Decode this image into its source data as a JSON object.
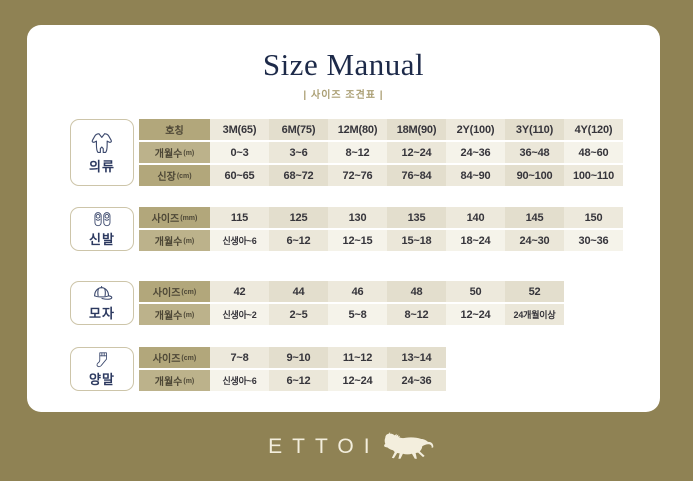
{
  "header": {
    "title": "Size Manual",
    "subtitle": "| 사이즈 조견표 |"
  },
  "sections": [
    {
      "id": "clothing",
      "label": "의류",
      "icon": "onesie-icon",
      "rows": [
        {
          "header": "호칭",
          "unit": "",
          "values": [
            "3M(65)",
            "6M(75)",
            "12M(80)",
            "18M(90)",
            "2Y(100)",
            "3Y(110)",
            "4Y(120)"
          ]
        },
        {
          "header": "개월수",
          "unit": "(m)",
          "values": [
            "0~3",
            "3~6",
            "8~12",
            "12~24",
            "24~36",
            "36~48",
            "48~60"
          ]
        },
        {
          "header": "신장",
          "unit": "(cm)",
          "values": [
            "60~65",
            "68~72",
            "72~76",
            "76~84",
            "84~90",
            "90~100",
            "100~110"
          ]
        }
      ]
    },
    {
      "id": "shoes",
      "label": "신발",
      "icon": "shoes-icon",
      "rows": [
        {
          "header": "사이즈",
          "unit": "(mm)",
          "values": [
            "115",
            "125",
            "130",
            "135",
            "140",
            "145",
            "150"
          ]
        },
        {
          "header": "개월수",
          "unit": "(m)",
          "values": [
            "신생아~6",
            "6~12",
            "12~15",
            "15~18",
            "18~24",
            "24~30",
            "30~36"
          ]
        }
      ]
    },
    {
      "id": "hats",
      "label": "모자",
      "icon": "cap-icon",
      "rows": [
        {
          "header": "사이즈",
          "unit": "(cm)",
          "values": [
            "42",
            "44",
            "46",
            "48",
            "50",
            "52"
          ]
        },
        {
          "header": "개월수",
          "unit": "(m)",
          "values": [
            "신생아~2",
            "2~5",
            "5~8",
            "8~12",
            "12~24",
            "24개월이상"
          ]
        }
      ]
    },
    {
      "id": "socks",
      "label": "양말",
      "icon": "sock-icon",
      "rows": [
        {
          "header": "사이즈",
          "unit": "(cm)",
          "values": [
            "7~8",
            "9~10",
            "11~12",
            "13~14"
          ]
        },
        {
          "header": "개월수",
          "unit": "(m)",
          "values": [
            "신생아~6",
            "6~12",
            "12~24",
            "24~36"
          ]
        }
      ]
    }
  ],
  "footer": {
    "brand": "ETTOI",
    "logo_icon": "horse-icon"
  },
  "colors": {
    "bg_olive": "#8f8254",
    "card_bg": "#ffffff",
    "title_navy": "#1d2a49",
    "subtitle_tan": "#ab9f74",
    "hdr_a": "#b2a77b",
    "hdr_b": "#bcb28b",
    "hdr_text": "#4d4736",
    "cell_a": "#ede9dc",
    "cell_b": "#e3decd",
    "cell_a2": "#f5f3ea",
    "cell_b2": "#ebe7d9",
    "cell_text": "#36353b",
    "label_navy": "#2c3960",
    "icon_navy": "#3d4a6e",
    "box_border": "#cdc5a9",
    "cream": "#f3eedd"
  }
}
